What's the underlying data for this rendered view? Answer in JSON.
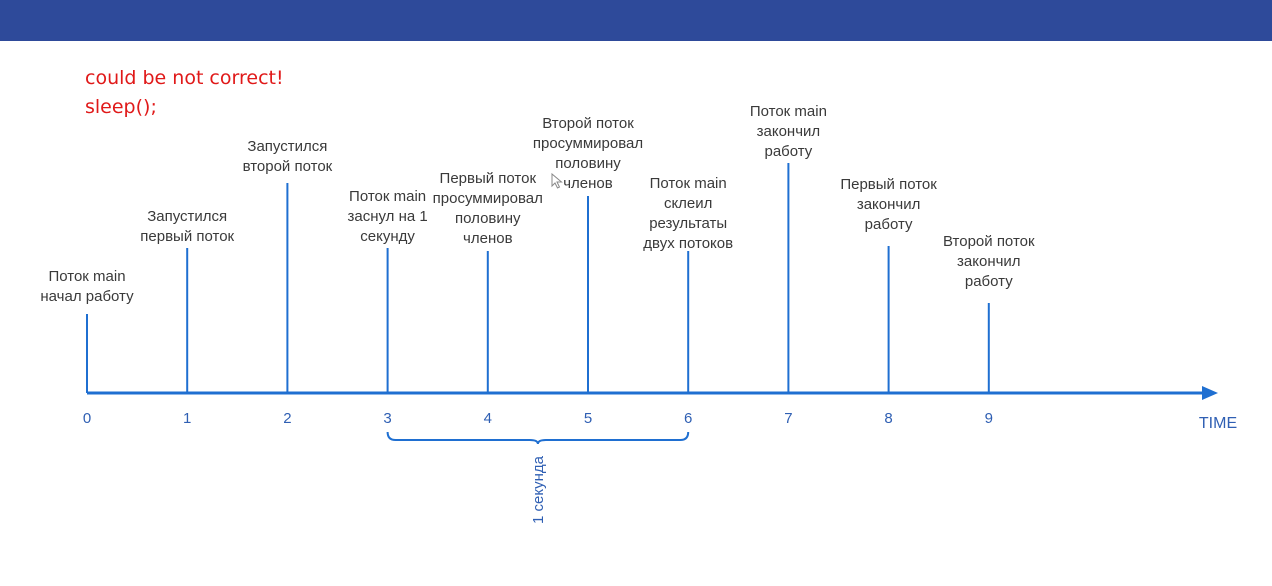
{
  "header": {
    "color": "#2e4a9a"
  },
  "note": {
    "line1": "could be not correct!",
    "line2": "sleep();",
    "color": "#e01919"
  },
  "timeline": {
    "axis_color": "#1f6fd1",
    "axis_end_label": "TIME",
    "ticks": [
      "0",
      "1",
      "2",
      "3",
      "4",
      "5",
      "6",
      "7",
      "8",
      "9"
    ],
    "events": [
      {
        "t": 0,
        "lines": [
          "Поток main",
          "начал работу"
        ]
      },
      {
        "t": 1,
        "lines": [
          "Запустился",
          "первый поток"
        ]
      },
      {
        "t": 2,
        "lines": [
          "Запустился",
          "второй поток"
        ]
      },
      {
        "t": 3,
        "lines": [
          "Поток main",
          "заснул на 1",
          "секунду"
        ]
      },
      {
        "t": 4,
        "lines": [
          "Первый поток",
          "просуммировал",
          "половину",
          "членов"
        ]
      },
      {
        "t": 5,
        "lines": [
          "Второй поток",
          "просуммировал",
          "половину",
          "членов"
        ]
      },
      {
        "t": 6,
        "lines": [
          "Поток main",
          "склеил",
          "результаты",
          "двух потоков"
        ]
      },
      {
        "t": 7,
        "lines": [
          "Поток main",
          "закончил",
          "работу"
        ]
      },
      {
        "t": 8,
        "lines": [
          "Первый поток",
          "закончил",
          "работу"
        ]
      },
      {
        "t": 9,
        "lines": [
          "Второй поток",
          "закончил",
          "работу"
        ]
      }
    ],
    "bracket": {
      "from": 3,
      "to": 6,
      "label": "1 секунда"
    }
  }
}
